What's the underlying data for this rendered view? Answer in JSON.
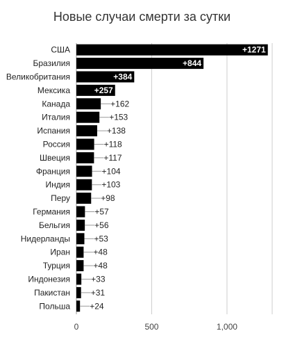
{
  "chart_data": {
    "type": "bar",
    "orientation": "horizontal",
    "title": "Новые случаи смерти за сутки",
    "xlabel": "",
    "ylabel": "",
    "categories": [
      "США",
      "Бразилия",
      "Великобритания",
      "Мексика",
      "Канада",
      "Италия",
      "Испания",
      "Россия",
      "Швеция",
      "Франция",
      "Индия",
      "Перу",
      "Германия",
      "Бельгия",
      "Нидерланды",
      "Иран",
      "Турция",
      "Индонезия",
      "Пакистан",
      "Польша"
    ],
    "values": [
      1271,
      844,
      384,
      257,
      162,
      153,
      138,
      118,
      117,
      104,
      103,
      98,
      57,
      56,
      53,
      48,
      48,
      33,
      31,
      24
    ],
    "value_labels": [
      "+1271",
      "+844",
      "+384",
      "+257",
      "+162",
      "+153",
      "+138",
      "+118",
      "+117",
      "+104",
      "+103",
      "+98",
      "+57",
      "+56",
      "+53",
      "+48",
      "+48",
      "+33",
      "+31",
      "+24"
    ],
    "xlim": [
      0,
      1300
    ],
    "x_ticks": [
      0,
      500,
      1000
    ],
    "x_tick_labels": [
      "0",
      "500",
      "1,000"
    ],
    "grid": true,
    "legend": "none",
    "colors": {
      "bar": "#000000",
      "grid": "#cccccc",
      "label_inside": "#ffffff",
      "label_outside": "#222222"
    }
  }
}
